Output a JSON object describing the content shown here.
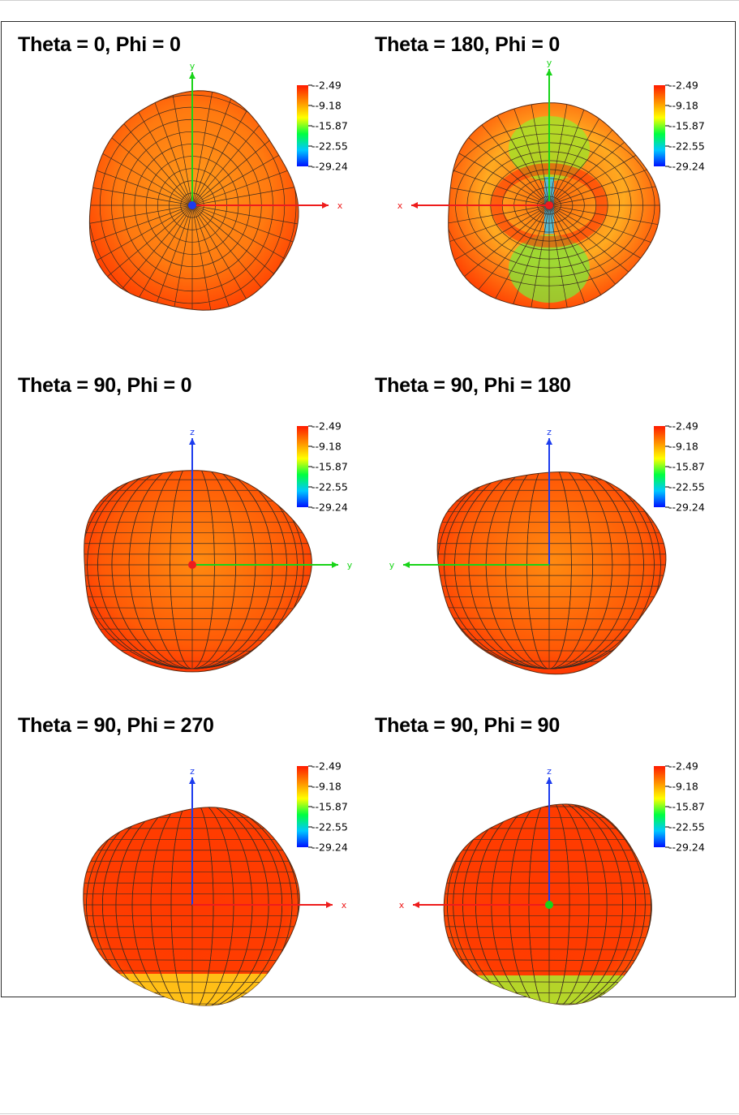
{
  "colorbar": {
    "labels": [
      "-2.49",
      "-9.18",
      "-15.87",
      "-22.55",
      "-29.24"
    ],
    "colors": [
      "#ff1a00",
      "#ff8c00",
      "#ffff00",
      "#00ff40",
      "#00c8ff",
      "#0010ff"
    ]
  },
  "axis_colors": {
    "x": "#ee1c1c",
    "y": "#18d418",
    "z": "#1c3cee"
  },
  "chart_data": [
    {
      "type": "3d-radiation-pattern",
      "title": "Theta = 0, Phi = 0",
      "view_axes": {
        "horizontal": "x",
        "vertical": "y",
        "into_screen": "z"
      },
      "colorbar": {
        "min": -29.24,
        "max": -2.49,
        "ticks": [
          -2.49,
          -9.18,
          -15.87,
          -22.55,
          -29.24
        ]
      }
    },
    {
      "type": "3d-radiation-pattern",
      "title": "Theta = 180, Phi = 0",
      "view_axes": {
        "horizontal": "x",
        "vertical": "y",
        "into_screen": "z"
      },
      "colorbar": {
        "min": -29.24,
        "max": -2.49,
        "ticks": [
          -2.49,
          -9.18,
          -15.87,
          -22.55,
          -29.24
        ]
      }
    },
    {
      "type": "3d-radiation-pattern",
      "title": "Theta = 90, Phi = 0",
      "view_axes": {
        "horizontal": "y",
        "vertical": "z",
        "into_screen": "x"
      },
      "colorbar": {
        "min": -29.24,
        "max": -2.49,
        "ticks": [
          -2.49,
          -9.18,
          -15.87,
          -22.55,
          -29.24
        ]
      }
    },
    {
      "type": "3d-radiation-pattern",
      "title": "Theta = 90, Phi = 180",
      "view_axes": {
        "horizontal": "y",
        "vertical": "z",
        "into_screen": "x"
      },
      "colorbar": {
        "min": -29.24,
        "max": -2.49,
        "ticks": [
          -2.49,
          -9.18,
          -15.87,
          -22.55,
          -29.24
        ]
      }
    },
    {
      "type": "3d-radiation-pattern",
      "title": "Theta = 90, Phi = 270",
      "view_axes": {
        "horizontal": "x",
        "vertical": "z",
        "into_screen": "y"
      },
      "colorbar": {
        "min": -29.24,
        "max": -2.49,
        "ticks": [
          -2.49,
          -9.18,
          -15.87,
          -22.55,
          -29.24
        ]
      }
    },
    {
      "type": "3d-radiation-pattern",
      "title": "Theta = 90, Phi = 90",
      "view_axes": {
        "horizontal": "x",
        "vertical": "z",
        "into_screen": "y"
      },
      "colorbar": {
        "min": -29.24,
        "max": -2.49,
        "ticks": [
          -2.49,
          -9.18,
          -15.87,
          -22.55,
          -29.24
        ]
      }
    }
  ]
}
